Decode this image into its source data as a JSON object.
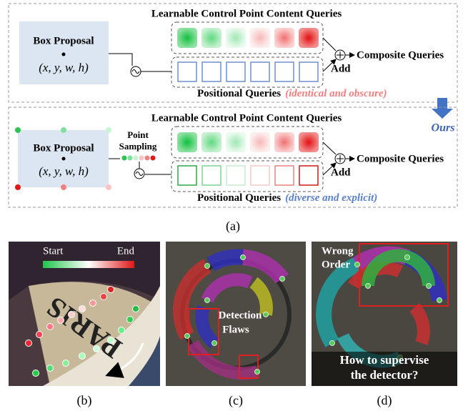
{
  "panel_a": {
    "top": {
      "title": "Learnable Control Point Content Queries",
      "box_label": "Box Proposal",
      "box_coords": "(x, y, w, h)",
      "output": "Composite Queries",
      "add": "Add",
      "positional": "Positional Queries",
      "note": "(identical and obscure)"
    },
    "bottom": {
      "title": "Learnable Control Point Content Queries",
      "box_label": "Box Proposal",
      "box_coords": "(x, y, w, h)",
      "sampling": [
        "Point",
        "Sampling"
      ],
      "output": "Composite Queries",
      "add": "Add",
      "positional": "Positional Queries",
      "note": "(diverse and explicit)"
    },
    "ours": "Ours",
    "caption": "(a)"
  },
  "panel_b": {
    "start": "Start",
    "end": "End",
    "image_text": "PARIS",
    "caption": "(b)"
  },
  "panel_c": {
    "annotation": [
      "Detection",
      "Flaws"
    ],
    "caption": "(c)"
  },
  "panel_d": {
    "annotation": [
      "Wrong",
      "Order"
    ],
    "question": [
      "How to supervise",
      "the detector?"
    ],
    "caption": "(d)"
  }
}
